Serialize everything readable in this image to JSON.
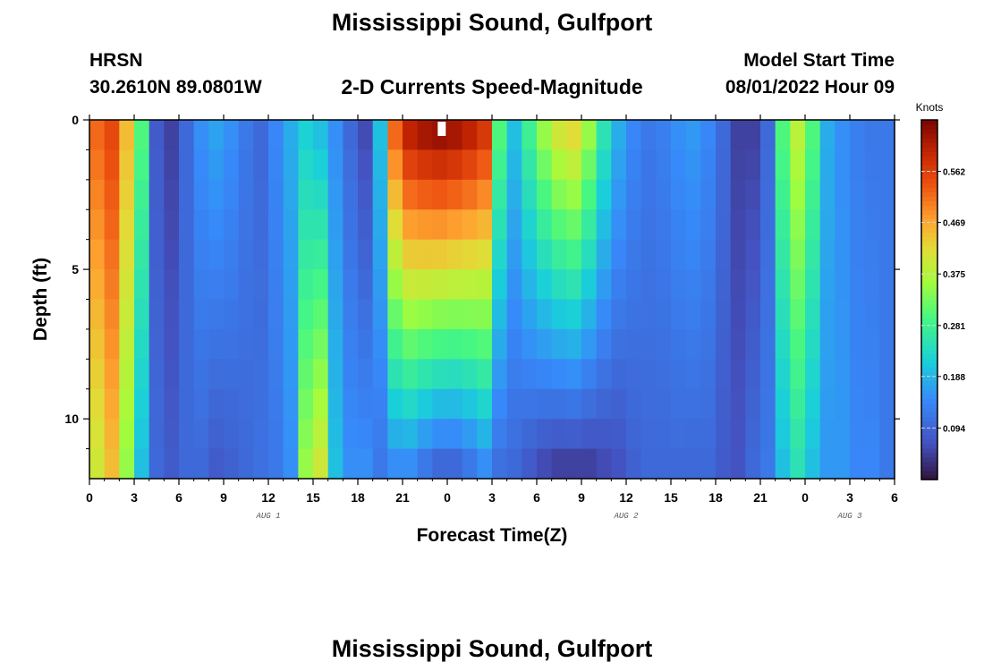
{
  "header": {
    "title": "Mississippi Sound, Gulfport",
    "station_id": "HRSN",
    "coords": "30.2610N  89.0801W",
    "subtitle": "2-D Currents Speed-Magnitude",
    "model_label": "Model Start Time",
    "model_time": "08/01/2022 Hour 09"
  },
  "footer": {
    "title": "Mississippi Sound, Gulfport"
  },
  "colors": {
    "background": "#ffffff",
    "axis": "#000000",
    "missing": "#ffffff"
  },
  "chart_data": {
    "type": "heatmap",
    "title": "2-D Currents Speed-Magnitude",
    "xlabel": "Forecast Time(Z)",
    "ylabel": "Depth (ft)",
    "x_hours_from_start": [
      0,
      54
    ],
    "x_ticks": [
      "0",
      "3",
      "6",
      "9",
      "12",
      "15",
      "18",
      "21",
      "0",
      "3",
      "6",
      "9",
      "12",
      "15",
      "18",
      "21",
      "0",
      "3",
      "6"
    ],
    "day_labels": [
      {
        "label": "AUG 1",
        "hour": 12
      },
      {
        "label": "AUG 2",
        "hour": 36
      },
      {
        "label": "AUG 3",
        "hour": 51
      }
    ],
    "ylim": [
      12,
      0
    ],
    "y_ticks": [
      "0",
      "5",
      "10"
    ],
    "y_tick_values": [
      0,
      5,
      10
    ],
    "colorbar": {
      "unit": "Knots",
      "range": [
        0,
        0.656
      ],
      "ticks": [
        "0.562",
        "0.469",
        "0.375",
        "0.281",
        "0.188",
        "0.094"
      ],
      "tick_values": [
        0.562,
        0.469,
        0.375,
        0.281,
        0.188,
        0.094
      ]
    },
    "missing_cell": {
      "hour": 23.6,
      "depth": 0.2
    },
    "surface_speed_by_hour": [
      0.52,
      0.55,
      0.45,
      0.3,
      0.08,
      0.05,
      0.1,
      0.15,
      0.17,
      0.15,
      0.12,
      0.1,
      0.14,
      0.18,
      0.22,
      0.2,
      0.15,
      0.1,
      0.06,
      0.2,
      0.52,
      0.6,
      0.62,
      0.63,
      0.62,
      0.6,
      0.57,
      0.3,
      0.2,
      0.28,
      0.35,
      0.4,
      0.42,
      0.35,
      0.25,
      0.18,
      0.14,
      0.12,
      0.13,
      0.15,
      0.16,
      0.14,
      0.1,
      0.05,
      0.05,
      0.1,
      0.3,
      0.38,
      0.3,
      0.18,
      0.15,
      0.13,
      0.12,
      0.12
    ],
    "bottom_speed_by_hour": [
      0.4,
      0.45,
      0.35,
      0.2,
      0.1,
      0.08,
      0.1,
      0.1,
      0.08,
      0.09,
      0.1,
      0.11,
      0.12,
      0.15,
      0.35,
      0.4,
      0.2,
      0.15,
      0.15,
      0.12,
      0.15,
      0.15,
      0.12,
      0.1,
      0.1,
      0.12,
      0.15,
      0.11,
      0.1,
      0.08,
      0.06,
      0.05,
      0.05,
      0.05,
      0.06,
      0.07,
      0.09,
      0.1,
      0.1,
      0.1,
      0.1,
      0.1,
      0.08,
      0.07,
      0.1,
      0.12,
      0.2,
      0.25,
      0.2,
      0.16,
      0.16,
      0.14,
      0.14,
      0.12
    ]
  }
}
